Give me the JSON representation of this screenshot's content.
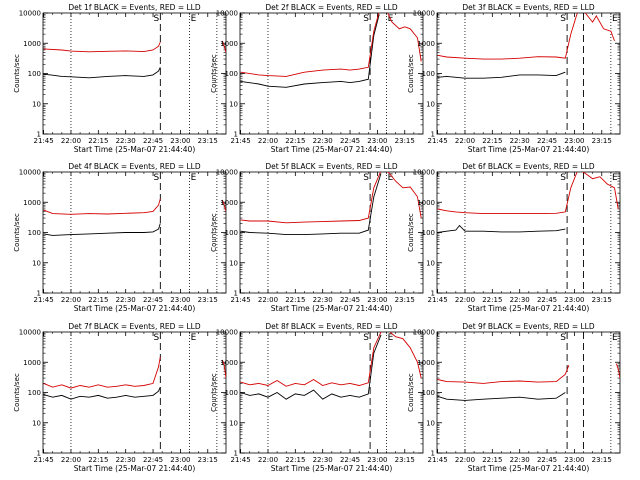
{
  "colors": {
    "events": "#000000",
    "lld": "#d40000",
    "axis": "#000000",
    "background": "#ffffff"
  },
  "common": {
    "xlabel": "Start Time (25-Mar-07 21:44:40)",
    "ylabel": "Counts/sec",
    "x_ticks": [
      "21:45",
      "22:00",
      "22:15",
      "22:30",
      "22:45",
      "23:00",
      "23:15"
    ],
    "y_ticks": [
      "1",
      "10",
      "100",
      "1000",
      "10000"
    ],
    "markers": [
      "S",
      "E"
    ],
    "xlim": [
      "21:44:40",
      "23:25:00"
    ],
    "ylim": [
      1,
      10000
    ],
    "yscale": "log"
  },
  "chart_data": [
    {
      "type": "line",
      "title": "Det 1f BLACK = Events, RED = LLD",
      "dotted_lines_x": [
        "22:00",
        "23:05",
        "23:20"
      ],
      "dashed_lines_x": [
        "22:49"
      ],
      "series": [
        {
          "color": "#000000",
          "x": [
            "21:45",
            "21:50",
            "21:55",
            "22:00",
            "22:10",
            "22:20",
            "22:30",
            "22:40",
            "22:45",
            "22:48",
            "22:49"
          ],
          "y": [
            95,
            88,
            80,
            78,
            72,
            80,
            85,
            80,
            90,
            120,
            160
          ]
        },
        {
          "color": "#d40000",
          "x": [
            "21:45",
            "21:55",
            "22:00",
            "22:10",
            "22:20",
            "22:30",
            "22:40",
            "22:45",
            "22:48",
            "22:49"
          ],
          "y": [
            650,
            600,
            550,
            520,
            540,
            560,
            530,
            600,
            800,
            1100
          ]
        },
        {
          "color": "#d40000",
          "x": [
            "23:23",
            "23:24",
            "23:25"
          ],
          "y": [
            1200,
            800,
            500
          ]
        }
      ]
    },
    {
      "type": "line",
      "title": "Det 2f BLACK = Events, RED = LLD",
      "dotted_lines_x": [
        "22:00",
        "23:05"
      ],
      "dashed_lines_x": [
        "22:56"
      ],
      "series": [
        {
          "color": "#000000",
          "x": [
            "21:45",
            "21:55",
            "22:00",
            "22:10",
            "22:20",
            "22:30",
            "22:40",
            "22:45",
            "22:50",
            "22:55",
            "22:58",
            "23:01"
          ],
          "y": [
            55,
            45,
            38,
            35,
            45,
            50,
            55,
            50,
            55,
            65,
            1800,
            9000
          ]
        },
        {
          "color": "#d40000",
          "x": [
            "21:45",
            "21:55",
            "22:00",
            "22:10",
            "22:20",
            "22:30",
            "22:40",
            "22:45",
            "22:50",
            "22:55",
            "22:58",
            "23:01",
            "23:05",
            "23:08",
            "23:12",
            "23:15",
            "23:18",
            "23:22",
            "23:24"
          ],
          "y": [
            110,
            90,
            85,
            80,
            110,
            130,
            140,
            130,
            140,
            160,
            2500,
            11000,
            12000,
            5000,
            3000,
            3500,
            3000,
            1500,
            250
          ]
        }
      ]
    },
    {
      "type": "line",
      "title": "Det 3f BLACK = Events, RED = LLD",
      "dotted_lines_x": [
        "22:00",
        "23:20"
      ],
      "dashed_lines_x": [
        "22:56",
        "23:05"
      ],
      "series": [
        {
          "color": "#000000",
          "x": [
            "21:45",
            "21:50",
            "22:00",
            "22:10",
            "22:20",
            "22:30",
            "22:40",
            "22:50",
            "22:55"
          ],
          "y": [
            75,
            80,
            70,
            70,
            75,
            90,
            90,
            85,
            110
          ]
        },
        {
          "color": "#d40000",
          "x": [
            "21:45",
            "21:50",
            "22:00",
            "22:10",
            "22:20",
            "22:30",
            "22:40",
            "22:50",
            "22:55",
            "22:58",
            "23:02",
            "23:06",
            "23:10",
            "23:12",
            "23:16",
            "23:20",
            "23:22"
          ],
          "y": [
            400,
            350,
            320,
            300,
            300,
            320,
            360,
            350,
            320,
            2000,
            12000,
            10000,
            5000,
            8000,
            3000,
            2500,
            1200
          ]
        }
      ]
    },
    {
      "type": "line",
      "title": "Det 4f BLACK = Events, RED = LLD",
      "dotted_lines_x": [
        "22:00",
        "23:05",
        "23:20"
      ],
      "dashed_lines_x": [
        "22:49"
      ],
      "series": [
        {
          "color": "#000000",
          "x": [
            "21:45",
            "21:50",
            "22:00",
            "22:10",
            "22:20",
            "22:30",
            "22:40",
            "22:45",
            "22:48",
            "22:49"
          ],
          "y": [
            90,
            80,
            85,
            90,
            95,
            100,
            100,
            105,
            130,
            200
          ]
        },
        {
          "color": "#d40000",
          "x": [
            "21:45",
            "21:50",
            "22:00",
            "22:10",
            "22:20",
            "22:30",
            "22:40",
            "22:45",
            "22:48",
            "22:49"
          ],
          "y": [
            550,
            420,
            400,
            420,
            410,
            430,
            450,
            500,
            800,
            1300
          ]
        },
        {
          "color": "#d40000",
          "x": [
            "23:23",
            "23:24",
            "23:25"
          ],
          "y": [
            1200,
            800,
            500
          ]
        }
      ]
    },
    {
      "type": "line",
      "title": "Det 5f BLACK = Events, RED = LLD",
      "dotted_lines_x": [
        "22:00",
        "23:05"
      ],
      "dashed_lines_x": [
        "22:56"
      ],
      "series": [
        {
          "color": "#000000",
          "x": [
            "21:45",
            "21:50",
            "22:00",
            "22:10",
            "22:20",
            "22:30",
            "22:40",
            "22:50",
            "22:55",
            "22:58",
            "23:02"
          ],
          "y": [
            110,
            100,
            95,
            85,
            85,
            90,
            95,
            95,
            120,
            1500,
            9000
          ]
        },
        {
          "color": "#d40000",
          "x": [
            "21:45",
            "21:50",
            "22:00",
            "22:10",
            "22:20",
            "22:30",
            "22:40",
            "22:50",
            "22:55",
            "22:58",
            "23:02",
            "23:06",
            "23:10",
            "23:14",
            "23:18",
            "23:22",
            "23:24"
          ],
          "y": [
            260,
            240,
            240,
            210,
            220,
            230,
            240,
            250,
            300,
            3000,
            11000,
            10000,
            5000,
            3000,
            3200,
            1500,
            300
          ]
        }
      ]
    },
    {
      "type": "line",
      "title": "Det 6f BLACK = Events, RED = LLD",
      "dotted_lines_x": [
        "22:00",
        "23:20"
      ],
      "dashed_lines_x": [
        "22:56",
        "23:05"
      ],
      "series": [
        {
          "color": "#000000",
          "x": [
            "21:45",
            "21:50",
            "21:55",
            "21:57",
            "22:00",
            "22:10",
            "22:20",
            "22:30",
            "22:40",
            "22:50",
            "22:55"
          ],
          "y": [
            100,
            110,
            120,
            170,
            110,
            110,
            105,
            105,
            110,
            115,
            130
          ]
        },
        {
          "color": "#d40000",
          "x": [
            "21:45",
            "21:50",
            "21:55",
            "22:00",
            "22:10",
            "22:20",
            "22:30",
            "22:40",
            "22:50",
            "22:55",
            "22:58",
            "23:02",
            "23:06",
            "23:10",
            "23:14",
            "23:18",
            "23:22",
            "23:24"
          ],
          "y": [
            600,
            520,
            480,
            450,
            420,
            420,
            420,
            420,
            430,
            480,
            3000,
            12000,
            9000,
            6000,
            7000,
            4000,
            3000,
            600
          ]
        }
      ]
    },
    {
      "type": "line",
      "title": "Det 7f BLACK = Events, RED = LLD",
      "dotted_lines_x": [
        "22:00",
        "23:05",
        "23:20"
      ],
      "dashed_lines_x": [
        "22:49"
      ],
      "series": [
        {
          "color": "#000000",
          "x": [
            "21:45",
            "21:50",
            "21:55",
            "22:00",
            "22:05",
            "22:10",
            "22:15",
            "22:20",
            "22:25",
            "22:30",
            "22:35",
            "22:40",
            "22:45",
            "22:48",
            "22:49"
          ],
          "y": [
            85,
            70,
            80,
            60,
            75,
            70,
            80,
            65,
            70,
            80,
            70,
            75,
            80,
            110,
            150
          ]
        },
        {
          "color": "#d40000",
          "x": [
            "21:45",
            "21:50",
            "21:55",
            "22:00",
            "22:05",
            "22:10",
            "22:15",
            "22:20",
            "22:25",
            "22:30",
            "22:35",
            "22:40",
            "22:45",
            "22:48",
            "22:49"
          ],
          "y": [
            200,
            150,
            180,
            140,
            170,
            150,
            180,
            150,
            160,
            180,
            160,
            170,
            200,
            700,
            1500
          ]
        },
        {
          "color": "#d40000",
          "x": [
            "23:23",
            "23:24",
            "23:25"
          ],
          "y": [
            1200,
            800,
            300
          ]
        }
      ]
    },
    {
      "type": "line",
      "title": "Det 8f BLACK = Events, RED = LLD",
      "dotted_lines_x": [
        "22:00",
        "23:05"
      ],
      "dashed_lines_x": [
        "22:56"
      ],
      "series": [
        {
          "color": "#000000",
          "x": [
            "21:45",
            "21:50",
            "21:55",
            "22:00",
            "22:05",
            "22:10",
            "22:15",
            "22:20",
            "22:25",
            "22:30",
            "22:35",
            "22:40",
            "22:45",
            "22:50",
            "22:55",
            "22:58",
            "23:02"
          ],
          "y": [
            100,
            80,
            90,
            70,
            100,
            60,
            90,
            80,
            120,
            60,
            90,
            70,
            80,
            70,
            90,
            2000,
            8000
          ]
        },
        {
          "color": "#d40000",
          "x": [
            "21:45",
            "21:50",
            "21:55",
            "22:00",
            "22:05",
            "22:10",
            "22:15",
            "22:20",
            "22:25",
            "22:30",
            "22:35",
            "22:40",
            "22:45",
            "22:50",
            "22:55",
            "22:58",
            "23:02",
            "23:06",
            "23:10",
            "23:14",
            "23:18",
            "23:22",
            "23:24"
          ],
          "y": [
            220,
            180,
            200,
            170,
            250,
            160,
            200,
            180,
            270,
            170,
            210,
            180,
            200,
            170,
            210,
            3000,
            10000,
            11000,
            7000,
            6000,
            3000,
            1000,
            300
          ]
        }
      ]
    },
    {
      "type": "line",
      "title": "Det 9f BLACK = Events, RED = LLD",
      "dotted_lines_x": [
        "22:00",
        "23:20"
      ],
      "dashed_lines_x": [
        "22:56",
        "23:05"
      ],
      "series": [
        {
          "color": "#000000",
          "x": [
            "21:45",
            "21:50",
            "22:00",
            "22:10",
            "22:20",
            "22:30",
            "22:40",
            "22:50",
            "22:55"
          ],
          "y": [
            75,
            60,
            55,
            60,
            65,
            70,
            60,
            65,
            100
          ]
        },
        {
          "color": "#d40000",
          "x": [
            "21:45",
            "21:50",
            "22:00",
            "22:10",
            "22:20",
            "22:30",
            "22:40",
            "22:50",
            "22:55",
            "22:57"
          ],
          "y": [
            270,
            230,
            220,
            200,
            230,
            240,
            220,
            230,
            400,
            800
          ]
        },
        {
          "color": "#d40000",
          "x": [
            "23:23",
            "23:24",
            "23:25"
          ],
          "y": [
            900,
            600,
            300
          ]
        }
      ]
    }
  ]
}
